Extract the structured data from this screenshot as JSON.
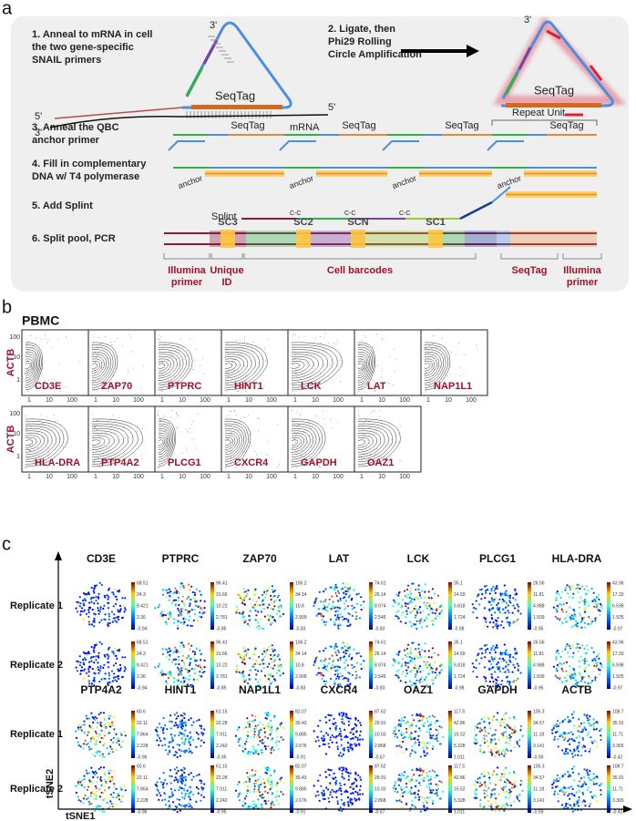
{
  "panel_a": {
    "label": "a",
    "steps": [
      [
        "1. Anneal to mRNA in cell",
        "the two gene-specific",
        "SNAIL primers"
      ],
      [
        "2.  Ligate, then",
        "Phi29 Rolling",
        "Circle Amplification"
      ],
      [
        "3. Anneal the QBC",
        "anchor primer"
      ],
      [
        "4. Fill in complementary",
        "DNA w/ T4 polymerase"
      ],
      [
        "5. Add Splint"
      ],
      [
        "6. Split pool, PCR"
      ]
    ],
    "diagram": {
      "prime3": "3'",
      "prime5": "5'",
      "seqtag": "SeqTag",
      "mrna": "mRNA",
      "repeat_unit": "Repeat Unit",
      "anchor": "anchor",
      "splint": "Splint",
      "cc": "C-C",
      "subcodes": [
        "SC3",
        "SC2",
        "SCN",
        "SC1"
      ],
      "bottom_labels": [
        [
          "Illumina",
          "primer"
        ],
        [
          "Unique",
          "ID"
        ],
        [
          "Cell barcodes"
        ],
        [
          "SeqTag"
        ],
        [
          "Illumina",
          "primer"
        ]
      ]
    }
  },
  "panel_b": {
    "label": "b",
    "title": "PBMC",
    "y_label": "ACTB",
    "ticks": [
      "1",
      "10",
      "100"
    ],
    "rows": [
      [
        "CD3E",
        "ZAP70",
        "PTPRC",
        "HINT1",
        "LCK",
        "LAT",
        "NAP1L1"
      ],
      [
        "HLA-DRA",
        "PTP4A2",
        "PLCG1",
        "CXCR4",
        "GAPDH",
        "OAZ1"
      ]
    ]
  },
  "panel_c": {
    "label": "c",
    "replicates": [
      "Replicate 1",
      "Replicate 2"
    ],
    "x_label": "tSNE1",
    "y_label": "tSNE2",
    "rows": [
      {
        "genes": [
          "CD3E",
          "PTPRC",
          "ZAP70",
          "LAT",
          "LCK",
          "PLCG1",
          "HLA-DRA"
        ],
        "scales": [
          [
            "68.51",
            "24.3",
            "8.421",
            "2.36",
            "-0.94"
          ],
          [
            "96.41",
            "31.66",
            "10.22",
            "2.781",
            "-0.85"
          ],
          [
            "106.2",
            "34.14",
            "10.8",
            "2.909",
            "-0.83"
          ],
          [
            "74.61",
            "26.14",
            "8.974",
            "2.545",
            "-0.83"
          ],
          [
            "35.1",
            "14.59",
            "5.818",
            "1.724",
            "-0.98"
          ],
          [
            "26.56",
            "11.81",
            "4.988",
            "1.509",
            "-0.95"
          ],
          [
            "43.96",
            "17.33",
            "6.598",
            "1.925",
            "-0.97"
          ]
        ]
      },
      {
        "genes": [
          "PTP4A2",
          "HINT1",
          "NAP1L1",
          "CXCR4",
          "OAZ1",
          "GAPDH",
          "ACTB"
        ],
        "scales": [
          [
            "60.6",
            "22.11",
            "7.864",
            "2.228",
            "-0.96"
          ],
          [
            "61.15",
            "22.28",
            "7.911",
            "2.242",
            "-0.95"
          ],
          [
            "82.07",
            "30.43",
            "9.885",
            "2.676",
            "-0.91"
          ],
          [
            "87.62",
            "29.91",
            "10.03",
            "2.868",
            "-0.67"
          ],
          [
            "117.5",
            "42.86",
            "15.52",
            "5.328",
            "1.011"
          ],
          [
            "105.3",
            "34.57",
            "11.18",
            "3.141",
            "-0.59"
          ],
          [
            "108.7",
            "35.91",
            "11.71",
            "3.365",
            "-0.42"
          ]
        ]
      }
    ]
  }
}
